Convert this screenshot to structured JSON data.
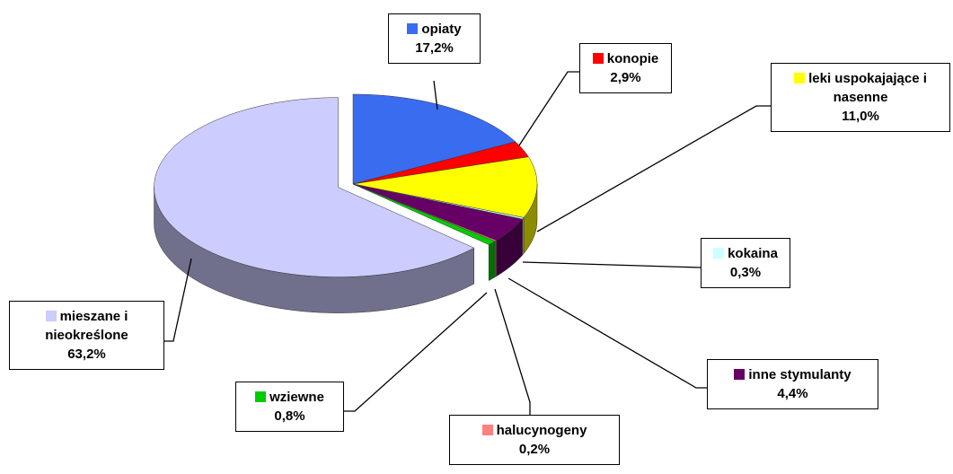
{
  "chart_data": {
    "type": "pie",
    "categories": [
      "opiaty",
      "konopie",
      "leki uspokajające i nasenne",
      "kokaina",
      "inne stymulanty",
      "halucynogeny",
      "wziewne",
      "mieszane i nieokreślone"
    ],
    "values": [
      17.2,
      2.9,
      11.0,
      0.3,
      4.4,
      0.2,
      0.8,
      63.2
    ],
    "value_labels": [
      "17,2%",
      "2,9%",
      "11,0%",
      "0,3%",
      "4,4%",
      "0,2%",
      "0,8%",
      "63,2%"
    ],
    "colors": [
      "#3a6cf0",
      "#ff0000",
      "#ffff00",
      "#ccffff",
      "#660066",
      "#ff8080",
      "#00cc00",
      "#ccccff"
    ]
  }
}
